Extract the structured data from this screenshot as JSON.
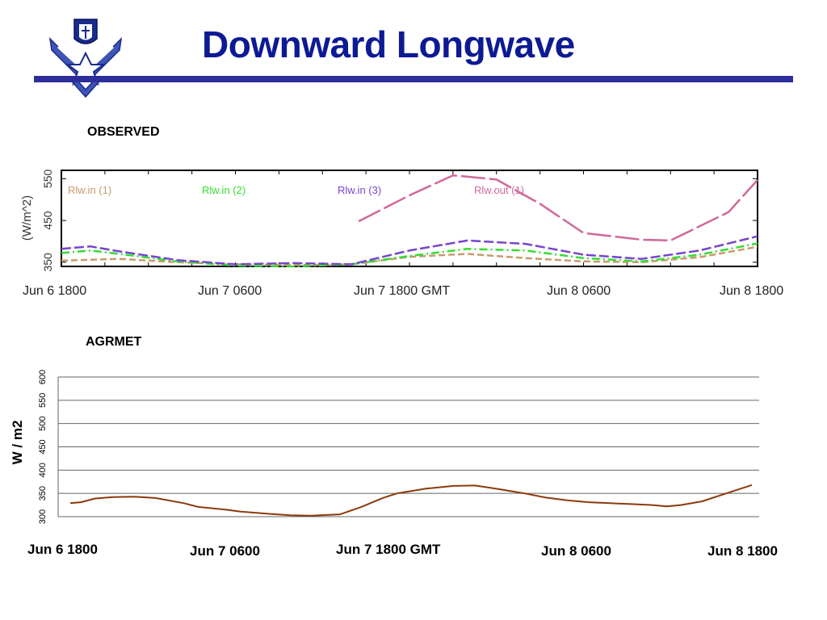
{
  "slide": {
    "title": "Downward Longwave",
    "observed_label": "OBSERVED",
    "agrmet_label": "AGRMET"
  },
  "colors": {
    "title": "#0d1a94",
    "rule": "#2d2e9b",
    "rlw_in_1": "#c89a6c",
    "rlw_in_2": "#33dd33",
    "rlw_in_3": "#7744cc",
    "rlw_out_1": "#d0679a",
    "agrmet_line": "#8b3a0a"
  },
  "chart_data": [
    {
      "id": "observed",
      "type": "line",
      "ylabel": "(W/m^2)",
      "ylim": [
        340,
        570
      ],
      "yticks": [
        350,
        450,
        550
      ],
      "x_ticks": [
        "Jun  6 1800",
        "Jun  7 0600",
        "Jun  7 1800 GMT",
        "Jun  8 0600",
        "Jun  8 1800"
      ],
      "xlim": [
        0,
        48
      ],
      "x_unit": "hours from Jun 6 1800",
      "grid": false,
      "legend": "top",
      "series": [
        {
          "name": "Rlw.in   (1)",
          "color_key": "rlw_in_1",
          "dash": "8 4",
          "x": [
            0,
            4,
            8,
            12,
            16,
            20,
            24,
            28,
            32,
            36,
            40,
            44,
            48
          ],
          "y": [
            354,
            358,
            350,
            345,
            343,
            345,
            363,
            370,
            360,
            352,
            350,
            362,
            387
          ]
        },
        {
          "name": "Rlw.in   (2)",
          "color_key": "rlw_in_2",
          "dash": "10 4 2 4",
          "x": [
            0,
            2,
            4,
            8,
            12,
            16,
            20,
            24,
            28,
            32,
            36,
            40,
            44,
            48
          ],
          "y": [
            372,
            378,
            370,
            352,
            342,
            340,
            345,
            365,
            382,
            378,
            360,
            352,
            368,
            395
          ]
        },
        {
          "name": "Rlw.in   (3)",
          "color_key": "rlw_in_3",
          "dash": "12 4",
          "x": [
            0,
            2,
            4,
            8,
            12,
            16,
            20,
            24,
            28,
            32,
            36,
            40,
            44,
            48
          ],
          "y": [
            382,
            388,
            376,
            355,
            345,
            348,
            345,
            378,
            402,
            394,
            368,
            358,
            378,
            412
          ]
        },
        {
          "name": "Rlw.out   (1)",
          "color_key": "rlw_out_1",
          "dash": "30 5",
          "x": [
            20.5,
            24,
            27,
            30,
            33,
            36,
            40,
            42,
            46,
            48
          ],
          "y": [
            448,
            510,
            558,
            548,
            490,
            420,
            404,
            402,
            470,
            547
          ]
        }
      ]
    },
    {
      "id": "agrmet",
      "type": "line",
      "ylabel": "W / m2",
      "ylim": [
        300,
        600
      ],
      "yticks": [
        300,
        350,
        400,
        450,
        500,
        550,
        600
      ],
      "x_ticks": [
        "Jun 6 1800",
        "Jun 7 0600",
        "Jun 7 1800 GMT",
        "Jun 8 0600",
        "Jun 8 1800"
      ],
      "xlim": [
        0,
        48
      ],
      "x_unit": "hours from Jun 6 1800",
      "grid": true,
      "series": [
        {
          "name": "",
          "color_key": "agrmet_line",
          "x": [
            0,
            0.75,
            1.75,
            3,
            4.5,
            6,
            8,
            9,
            11,
            12,
            14,
            15.5,
            17,
            19,
            20.5,
            22,
            23,
            25,
            27,
            28.5,
            30,
            32,
            33.5,
            35,
            36.5,
            38,
            39.5,
            41,
            42,
            43,
            44.5,
            46,
            48
          ],
          "y": [
            329,
            331,
            339,
            342,
            343,
            340,
            329,
            321,
            315,
            311,
            306,
            303,
            302,
            305,
            321,
            340,
            350,
            360,
            366,
            367,
            360,
            350,
            341,
            335,
            331,
            329,
            327,
            325,
            322,
            325,
            333,
            348,
            368
          ]
        }
      ]
    }
  ]
}
